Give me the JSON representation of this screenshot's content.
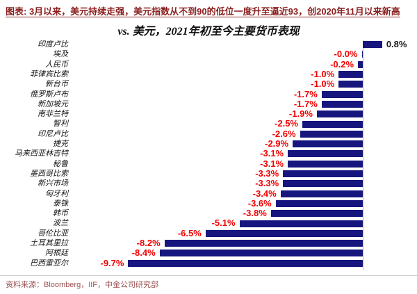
{
  "header": {
    "title": "图表: 3月以来，美元持续走强，美元指数从不到90的低位一度升至逼近93，创2020年11月以来新高"
  },
  "chart_data": {
    "type": "bar",
    "orientation": "horizontal",
    "title": "vs. 美元，2021年初至今主要货币表现",
    "categories": [
      "印度卢比",
      "埃及",
      "人民币",
      "菲律宾比索",
      "新台币",
      "俄罗斯卢布",
      "新加坡元",
      "南非兰特",
      "智利",
      "印尼卢比",
      "捷克",
      "马来西亚林吉特",
      "秘鲁",
      "墨西哥比索",
      "新兴市场",
      "匈牙利",
      "泰铢",
      "韩币",
      "波兰",
      "哥伦比亚",
      "土耳其里拉",
      "阿根廷",
      "巴西雷亚尔"
    ],
    "values": [
      0.8,
      -0.0,
      -0.2,
      -1.0,
      -1.0,
      -1.7,
      -1.7,
      -1.9,
      -2.5,
      -2.6,
      -2.9,
      -3.1,
      -3.1,
      -3.3,
      -3.3,
      -3.4,
      -3.6,
      -3.8,
      -5.1,
      -6.5,
      -8.2,
      -8.4,
      -9.7
    ],
    "labels": [
      "0.8%",
      "-0.0%",
      "-0.2%",
      "-1.0%",
      "-1.0%",
      "-1.7%",
      "-1.7%",
      "-1.9%",
      "-2.5%",
      "-2.6%",
      "-2.9%",
      "-3.1%",
      "-3.1%",
      "-3.3%",
      "-3.3%",
      "-3.4%",
      "-3.6%",
      "-3.8%",
      "-5.1%",
      "-6.5%",
      "-8.2%",
      "-8.4%",
      "-9.7%"
    ],
    "xlim": [
      -10.5,
      2.5
    ],
    "unit": "%",
    "grid": false,
    "legend": false,
    "bar_color": "#16167e",
    "negative_label_color": "#f20000",
    "positive_label_color": "#1a1a1a",
    "axis_line_color": "#b3b7bb"
  },
  "footer": {
    "source": "资料来源：Bloomberg，IIF，中金公司研究部"
  },
  "accent_colors": {
    "header_maroon": "#8a1e1e",
    "footer_maroon": "#9b5151"
  }
}
